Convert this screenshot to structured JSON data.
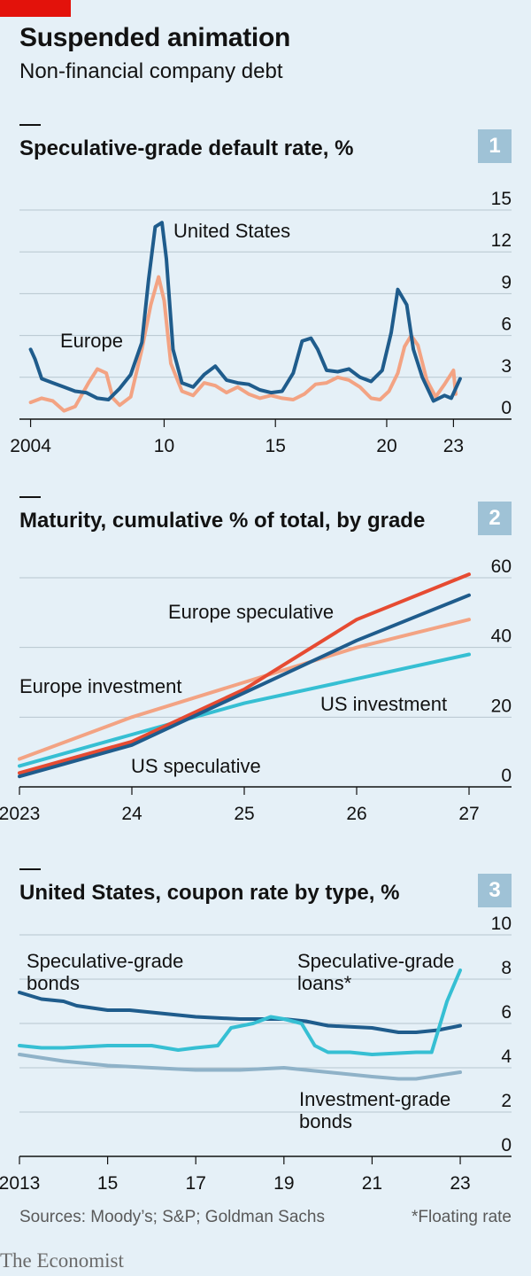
{
  "header": {
    "title": "Suspended animation",
    "subtitle": "Non-financial company debt"
  },
  "footer": {
    "sources": "Sources: Moody’s; S&P; Goldman Sachs",
    "note": "*Floating rate",
    "brand": "The Economist"
  },
  "colors": {
    "background": "#e5f0f7",
    "dark_blue": "#1f5c8c",
    "pink": "#f3a383",
    "red": "#e64b32",
    "cyan": "#36bfd3",
    "light_blue": "#8fb2c8",
    "brand_red": "#e3120b"
  },
  "chart_data": [
    {
      "id": "1",
      "type": "line",
      "title": "Speculative-grade default rate, %",
      "xlim": [
        2003.5,
        2023.7
      ],
      "ylim": [
        0,
        15
      ],
      "ticks_y": [
        0,
        3,
        6,
        9,
        12,
        15
      ],
      "ticks_x": [
        {
          "value": 2004,
          "label": "2004"
        },
        {
          "value": 2010,
          "label": "10"
        },
        {
          "value": 2015,
          "label": "15"
        },
        {
          "value": 2020,
          "label": "20"
        },
        {
          "value": 2023,
          "label": "23"
        }
      ],
      "series": [
        {
          "name": "Europe",
          "color": "#f3a383",
          "points": [
            [
              2004,
              1.2
            ],
            [
              2004.5,
              1.5
            ],
            [
              2005,
              1.3
            ],
            [
              2005.5,
              0.6
            ],
            [
              2006,
              0.9
            ],
            [
              2006.6,
              2.6
            ],
            [
              2007,
              3.6
            ],
            [
              2007.4,
              3.3
            ],
            [
              2007.7,
              1.5
            ],
            [
              2008,
              1.0
            ],
            [
              2008.5,
              1.6
            ],
            [
              2009,
              5.0
            ],
            [
              2009.4,
              8.2
            ],
            [
              2009.75,
              10.2
            ],
            [
              2010,
              8.5
            ],
            [
              2010.3,
              4.0
            ],
            [
              2010.8,
              2.0
            ],
            [
              2011.3,
              1.7
            ],
            [
              2011.8,
              2.6
            ],
            [
              2012.3,
              2.4
            ],
            [
              2012.8,
              1.9
            ],
            [
              2013.3,
              2.3
            ],
            [
              2013.8,
              1.8
            ],
            [
              2014.3,
              1.5
            ],
            [
              2014.8,
              1.7
            ],
            [
              2015.3,
              1.5
            ],
            [
              2015.8,
              1.4
            ],
            [
              2016.3,
              1.8
            ],
            [
              2016.8,
              2.5
            ],
            [
              2017.3,
              2.6
            ],
            [
              2017.8,
              3.0
            ],
            [
              2018.3,
              2.8
            ],
            [
              2018.8,
              2.3
            ],
            [
              2019.3,
              1.5
            ],
            [
              2019.7,
              1.4
            ],
            [
              2020.1,
              2.0
            ],
            [
              2020.5,
              3.3
            ],
            [
              2020.8,
              5.2
            ],
            [
              2021.1,
              6.0
            ],
            [
              2021.4,
              5.3
            ],
            [
              2021.8,
              2.8
            ],
            [
              2022.2,
              1.6
            ],
            [
              2022.6,
              2.5
            ],
            [
              2023,
              3.5
            ],
            [
              2023.1,
              1.8
            ]
          ]
        },
        {
          "name": "United States",
          "color": "#1f5c8c",
          "points": [
            [
              2004,
              5.0
            ],
            [
              2004.2,
              4.3
            ],
            [
              2004.5,
              2.9
            ],
            [
              2005,
              2.6
            ],
            [
              2005.5,
              2.3
            ],
            [
              2006,
              2.0
            ],
            [
              2006.5,
              1.9
            ],
            [
              2007,
              1.5
            ],
            [
              2007.5,
              1.4
            ],
            [
              2008,
              2.2
            ],
            [
              2008.5,
              3.2
            ],
            [
              2009,
              5.5
            ],
            [
              2009.3,
              10.0
            ],
            [
              2009.6,
              13.8
            ],
            [
              2009.9,
              14.1
            ],
            [
              2010.1,
              11.5
            ],
            [
              2010.4,
              5.0
            ],
            [
              2010.8,
              2.6
            ],
            [
              2011.3,
              2.3
            ],
            [
              2011.8,
              3.2
            ],
            [
              2012.3,
              3.8
            ],
            [
              2012.8,
              2.8
            ],
            [
              2013.3,
              2.6
            ],
            [
              2013.8,
              2.5
            ],
            [
              2014.3,
              2.1
            ],
            [
              2014.8,
              1.9
            ],
            [
              2015.3,
              2.0
            ],
            [
              2015.8,
              3.3
            ],
            [
              2016.2,
              5.6
            ],
            [
              2016.6,
              5.8
            ],
            [
              2016.9,
              5.0
            ],
            [
              2017.3,
              3.5
            ],
            [
              2017.8,
              3.4
            ],
            [
              2018.3,
              3.6
            ],
            [
              2018.8,
              3.0
            ],
            [
              2019.3,
              2.7
            ],
            [
              2019.8,
              3.5
            ],
            [
              2020.2,
              6.2
            ],
            [
              2020.5,
              9.3
            ],
            [
              2020.9,
              8.2
            ],
            [
              2021.2,
              5.0
            ],
            [
              2021.6,
              3.0
            ],
            [
              2022.1,
              1.3
            ],
            [
              2022.6,
              1.7
            ],
            [
              2022.9,
              1.5
            ],
            [
              2023.3,
              2.9
            ]
          ]
        }
      ],
      "labels": {
        "Europe": "Europe",
        "United States": "United States"
      }
    },
    {
      "id": "2",
      "type": "line",
      "title": "Maturity, cumulative % of total, by grade",
      "xlim": [
        2023,
        2027
      ],
      "ylim": [
        0,
        60
      ],
      "ticks_y": [
        0,
        20,
        40,
        60
      ],
      "ticks_x": [
        {
          "value": 2023,
          "label": "2023"
        },
        {
          "value": 2024,
          "label": "24"
        },
        {
          "value": 2025,
          "label": "25"
        },
        {
          "value": 2026,
          "label": "26"
        },
        {
          "value": 2027,
          "label": "27"
        }
      ],
      "series": [
        {
          "name": "Europe investment",
          "color": "#f3a383",
          "points": [
            [
              2023,
              8
            ],
            [
              2024,
              20
            ],
            [
              2025,
              30
            ],
            [
              2026,
              40
            ],
            [
              2027,
              48
            ]
          ]
        },
        {
          "name": "US investment",
          "color": "#36bfd3",
          "points": [
            [
              2023,
              6
            ],
            [
              2024,
              15
            ],
            [
              2025,
              24
            ],
            [
              2026,
              31
            ],
            [
              2027,
              38
            ]
          ]
        },
        {
          "name": "Europe speculative",
          "color": "#e64b32",
          "points": [
            [
              2023,
              4
            ],
            [
              2024,
              13
            ],
            [
              2025,
              28
            ],
            [
              2026,
              48
            ],
            [
              2027,
              61
            ]
          ]
        },
        {
          "name": "US speculative",
          "color": "#1f5c8c",
          "points": [
            [
              2023,
              3
            ],
            [
              2024,
              12
            ],
            [
              2025,
              27
            ],
            [
              2026,
              42
            ],
            [
              2027,
              55
            ]
          ]
        }
      ],
      "labels": {
        "Europe speculative": "Europe speculative",
        "Europe investment": "Europe investment",
        "US investment": "US investment",
        "US speculative": "US speculative"
      }
    },
    {
      "id": "3",
      "type": "line",
      "title": "United States, coupon rate by type, %",
      "xlim": [
        2013,
        2023.2
      ],
      "ylim": [
        0,
        10
      ],
      "ticks_y": [
        0,
        2,
        4,
        6,
        8,
        10
      ],
      "ticks_x": [
        {
          "value": 2013,
          "label": "2013"
        },
        {
          "value": 2015,
          "label": "15"
        },
        {
          "value": 2017,
          "label": "17"
        },
        {
          "value": 2019,
          "label": "19"
        },
        {
          "value": 2021,
          "label": "21"
        },
        {
          "value": 2023,
          "label": "23"
        }
      ],
      "series": [
        {
          "name": "Speculative-grade bonds",
          "color": "#1f5c8c",
          "points": [
            [
              2013,
              7.4
            ],
            [
              2013.5,
              7.1
            ],
            [
              2014,
              7.0
            ],
            [
              2014.3,
              6.8
            ],
            [
              2015,
              6.6
            ],
            [
              2015.5,
              6.6
            ],
            [
              2016,
              6.5
            ],
            [
              2017,
              6.3
            ],
            [
              2018,
              6.2
            ],
            [
              2019,
              6.2
            ],
            [
              2019.5,
              6.1
            ],
            [
              2020,
              5.9
            ],
            [
              2021,
              5.8
            ],
            [
              2021.6,
              5.6
            ],
            [
              2022,
              5.6
            ],
            [
              2022.5,
              5.7
            ],
            [
              2023,
              5.9
            ]
          ]
        },
        {
          "name": "Speculative-grade loans*",
          "color": "#36bfd3",
          "points": [
            [
              2013,
              5.0
            ],
            [
              2013.5,
              4.9
            ],
            [
              2014,
              4.9
            ],
            [
              2015,
              5.0
            ],
            [
              2016,
              5.0
            ],
            [
              2016.6,
              4.8
            ],
            [
              2017,
              4.9
            ],
            [
              2017.5,
              5.0
            ],
            [
              2017.8,
              5.8
            ],
            [
              2018.3,
              6.0
            ],
            [
              2018.7,
              6.3
            ],
            [
              2019,
              6.2
            ],
            [
              2019.4,
              6.0
            ],
            [
              2019.7,
              5.0
            ],
            [
              2020,
              4.7
            ],
            [
              2020.5,
              4.7
            ],
            [
              2021,
              4.6
            ],
            [
              2022,
              4.7
            ],
            [
              2022.35,
              4.7
            ],
            [
              2022.7,
              7.0
            ],
            [
              2023,
              8.4
            ]
          ]
        },
        {
          "name": "Investment-grade bonds",
          "color": "#8fb2c8",
          "points": [
            [
              2013,
              4.6
            ],
            [
              2014,
              4.3
            ],
            [
              2015,
              4.1
            ],
            [
              2016,
              4.0
            ],
            [
              2017,
              3.9
            ],
            [
              2018,
              3.9
            ],
            [
              2019,
              4.0
            ],
            [
              2020,
              3.8
            ],
            [
              2021,
              3.6
            ],
            [
              2021.6,
              3.5
            ],
            [
              2022,
              3.5
            ],
            [
              2023,
              3.8
            ]
          ]
        }
      ],
      "labels": {
        "bonds": "Speculative-grade|bonds",
        "loans": "Speculative-grade|loans*",
        "ig": "Investment-grade|bonds"
      }
    }
  ]
}
